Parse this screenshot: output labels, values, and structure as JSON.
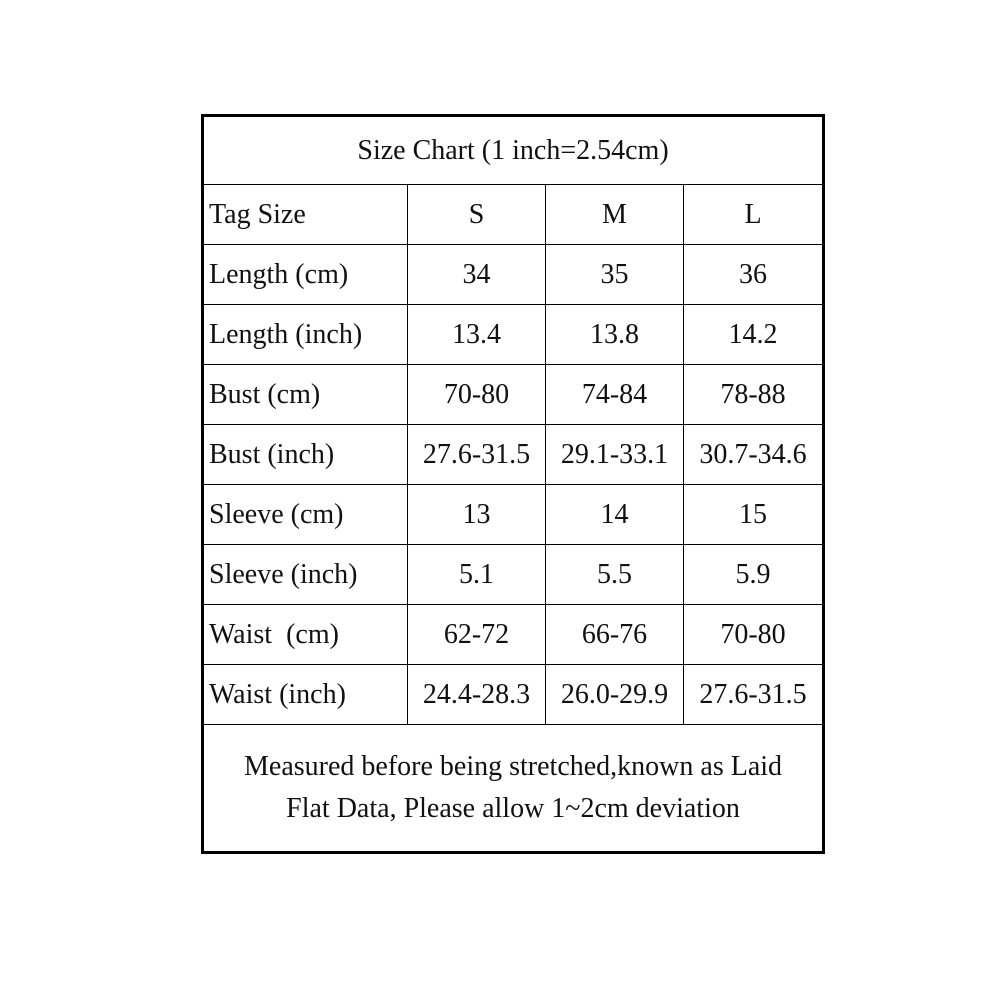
{
  "table": {
    "title": "Size Chart (1 inch=2.54cm)",
    "header": {
      "label": "Tag Size",
      "sizes": [
        "S",
        "M",
        "L"
      ]
    },
    "rows": [
      {
        "label": "Length (cm)",
        "values": [
          "34",
          "35",
          "36"
        ]
      },
      {
        "label": "Length (inch)",
        "values": [
          "13.4",
          "13.8",
          "14.2"
        ]
      },
      {
        "label": "Bust (cm)",
        "values": [
          "70-80",
          "74-84",
          "78-88"
        ]
      },
      {
        "label": "Bust (inch)",
        "values": [
          "27.6-31.5",
          "29.1-33.1",
          "30.7-34.6"
        ]
      },
      {
        "label": "Sleeve (cm)",
        "values": [
          "13",
          "14",
          "15"
        ]
      },
      {
        "label": "Sleeve (inch)",
        "values": [
          "5.1",
          "5.5",
          "5.9"
        ]
      },
      {
        "label": "Waist  (cm)",
        "values": [
          "62-72",
          "66-76",
          "70-80"
        ]
      },
      {
        "label": "Waist (inch)",
        "values": [
          "24.4-28.3",
          "26.0-29.9",
          "27.6-31.5"
        ]
      }
    ],
    "note": {
      "line1": "Measured before being stretched,known as Laid",
      "line2": "Flat Data, Please allow 1~2cm deviation"
    }
  }
}
